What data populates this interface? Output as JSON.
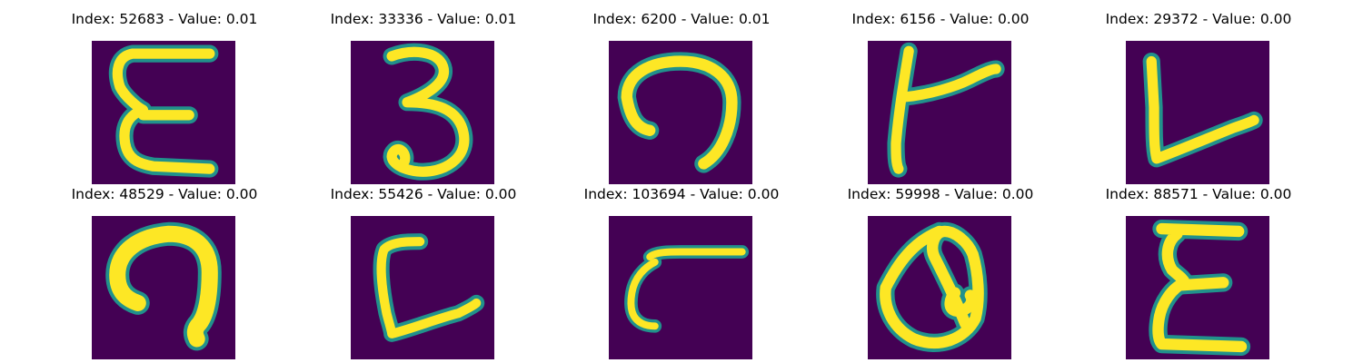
{
  "colors": {
    "background": "#440154",
    "stroke": "#fde725",
    "edge": "#21918c"
  },
  "panels": [
    {
      "title": "Index: 52683 - Value: 0.01",
      "glyph": "E-like handwritten character"
    },
    {
      "title": "Index: 33336 - Value: 0.01",
      "glyph": "3-like handwritten character"
    },
    {
      "title": "Index: 6200 - Value: 0.01",
      "glyph": "arch-shaped handwritten character"
    },
    {
      "title": "Index: 6156 - Value: 0.00",
      "glyph": "t-like handwritten character"
    },
    {
      "title": "Index: 29372 - Value: 0.00",
      "glyph": "L-like handwritten character"
    },
    {
      "title": "Index: 48529 - Value: 0.00",
      "glyph": "hook-shaped handwritten character"
    },
    {
      "title": "Index: 55426 - Value: 0.00",
      "glyph": "L-like handwritten character"
    },
    {
      "title": "Index: 103694 - Value: 0.00",
      "glyph": "r-like handwritten character"
    },
    {
      "title": "Index: 59998 - Value: 0.00",
      "glyph": "a-like handwritten character"
    },
    {
      "title": "Index: 88571 - Value: 0.00",
      "glyph": "E-like handwritten character"
    }
  ]
}
